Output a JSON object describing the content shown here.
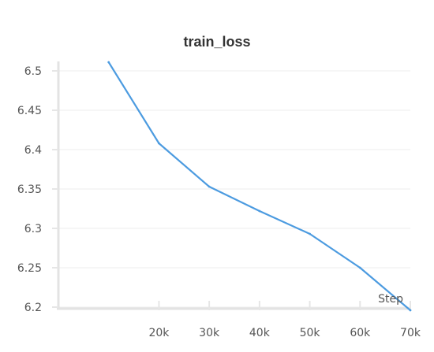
{
  "chart_data": {
    "type": "line",
    "title": "train_loss",
    "xlabel": "Step",
    "ylabel": "",
    "xlim": [
      0,
      70000
    ],
    "ylim": [
      6.2,
      6.5
    ],
    "x_ticks": [
      20000,
      30000,
      40000,
      50000,
      60000,
      70000
    ],
    "x_tick_labels": [
      "20k",
      "30k",
      "40k",
      "50k",
      "60k",
      "70k"
    ],
    "y_ticks": [
      6.2,
      6.25,
      6.3,
      6.35,
      6.4,
      6.45,
      6.5
    ],
    "y_tick_labels": [
      "6.2",
      "6.25",
      "6.3",
      "6.35",
      "6.4",
      "6.45",
      "6.5"
    ],
    "grid": true,
    "series": [
      {
        "color": "#4c9be0",
        "x": [
          10000,
          20000,
          30000,
          40000,
          50000,
          60000,
          70000
        ],
        "y": [
          6.511,
          6.408,
          6.353,
          6.322,
          6.293,
          6.25,
          6.196
        ]
      }
    ]
  }
}
